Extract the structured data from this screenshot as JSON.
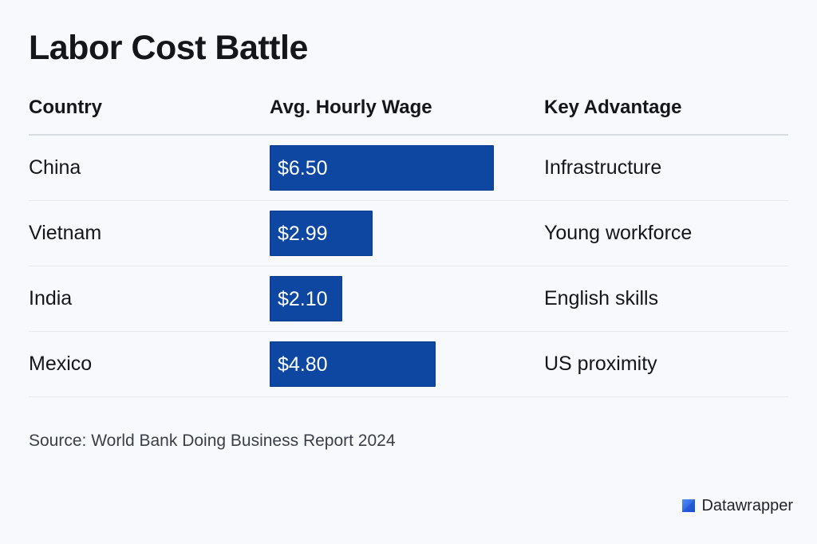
{
  "title": "Labor Cost Battle",
  "columns": {
    "country": "Country",
    "wage": "Avg. Hourly Wage",
    "advantage": "Key Advantage"
  },
  "rows": [
    {
      "country": "China",
      "wage_label": "$6.50",
      "advantage": "Infrastructure"
    },
    {
      "country": "Vietnam",
      "wage_label": "$2.99",
      "advantage": "Young workforce"
    },
    {
      "country": "India",
      "wage_label": "$2.10",
      "advantage": "English skills"
    },
    {
      "country": "Mexico",
      "wage_label": "$4.80",
      "advantage": "US proximity"
    }
  ],
  "source": "Source: World Bank Doing Business Report 2024",
  "brand": {
    "label": "Datawrapper",
    "icon": "datawrapper-logo-icon"
  },
  "colors": {
    "bar": "#0d47a1",
    "background": "#f7f9fc"
  },
  "chart_data": {
    "type": "table",
    "title": "Labor Cost Battle",
    "columns": [
      "Country",
      "Avg. Hourly Wage",
      "Key Advantage"
    ],
    "categories": [
      "China",
      "Vietnam",
      "India",
      "Mexico"
    ],
    "values": [
      6.5,
      2.99,
      2.1,
      4.8
    ],
    "advantages": [
      "Infrastructure",
      "Young workforce",
      "English skills",
      "US proximity"
    ],
    "bar_max_value": 6.5
  }
}
